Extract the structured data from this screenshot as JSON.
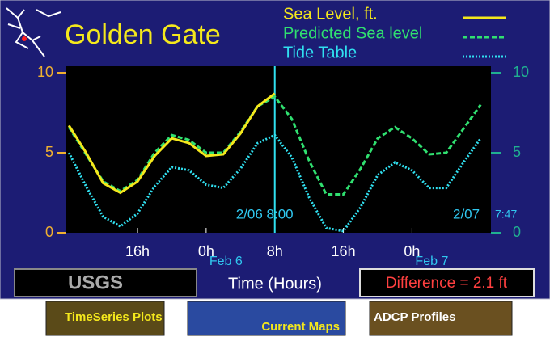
{
  "header": {
    "title": "Golden Gate"
  },
  "chart_data": {
    "type": "line",
    "x": [
      -16,
      -14,
      -12,
      -10,
      -8,
      -6,
      -4,
      -2,
      0,
      2,
      4,
      6,
      8,
      10,
      12,
      14,
      16,
      18,
      20,
      22,
      24,
      26,
      28,
      30,
      32
    ],
    "xlim": [
      -16.3,
      33.2
    ],
    "xticks": [
      {
        "value": -8,
        "label": "16h"
      },
      {
        "value": 0,
        "label": "0h"
      },
      {
        "value": 8,
        "label": "8h"
      },
      {
        "value": 16,
        "label": "16h"
      },
      {
        "value": 24,
        "label": "0h"
      }
    ],
    "x_date_labels": [
      {
        "value": 0,
        "label": "Feb 6"
      },
      {
        "value": 24,
        "label": "Feb 7"
      }
    ],
    "ylim": [
      0,
      10
    ],
    "yticks": [
      0,
      5,
      10
    ],
    "y2lim": [
      0,
      10
    ],
    "y2ticks": [
      0,
      5,
      10
    ],
    "xlabel": "Time (Hours)",
    "series": [
      {
        "name": "Sea Level, ft.",
        "color": "#f4e81c",
        "dash": "solid",
        "values": [
          6.7,
          5.0,
          3.1,
          2.5,
          3.2,
          4.8,
          5.9,
          5.6,
          4.8,
          4.9,
          6.2,
          7.9,
          8.7,
          null,
          null,
          null,
          null,
          null,
          null,
          null,
          null,
          null,
          null,
          null,
          null
        ]
      },
      {
        "name": "Predicted Sea level",
        "color": "#30e070",
        "dash": "dashed",
        "values": [
          6.6,
          4.9,
          3.2,
          2.6,
          3.3,
          5.0,
          6.1,
          5.8,
          5.0,
          5.0,
          6.3,
          7.9,
          8.5,
          7.1,
          4.5,
          2.4,
          2.4,
          4.0,
          5.9,
          6.6,
          5.9,
          4.9,
          5.0,
          6.5,
          8.0
        ]
      },
      {
        "name": "Tide Table",
        "color": "#30e0f0",
        "dash": "dotted",
        "axis": "y2",
        "values": [
          5.0,
          2.9,
          1.0,
          0.4,
          1.2,
          2.9,
          4.1,
          3.9,
          3.0,
          2.8,
          4.0,
          5.6,
          6.1,
          4.7,
          2.2,
          0.3,
          0.1,
          1.6,
          3.6,
          4.4,
          3.9,
          2.8,
          2.8,
          4.4,
          5.9
        ]
      }
    ],
    "now_marker": {
      "value": 8,
      "label": "2/06 8:00"
    },
    "end_label": "2/07",
    "end_time": "7:47"
  },
  "footer": {
    "logo": "USGS",
    "difference": "Difference = 2.1 ft"
  },
  "nav": [
    "TimeSeries Plots",
    "Current Maps",
    "ADCP Profiles"
  ]
}
